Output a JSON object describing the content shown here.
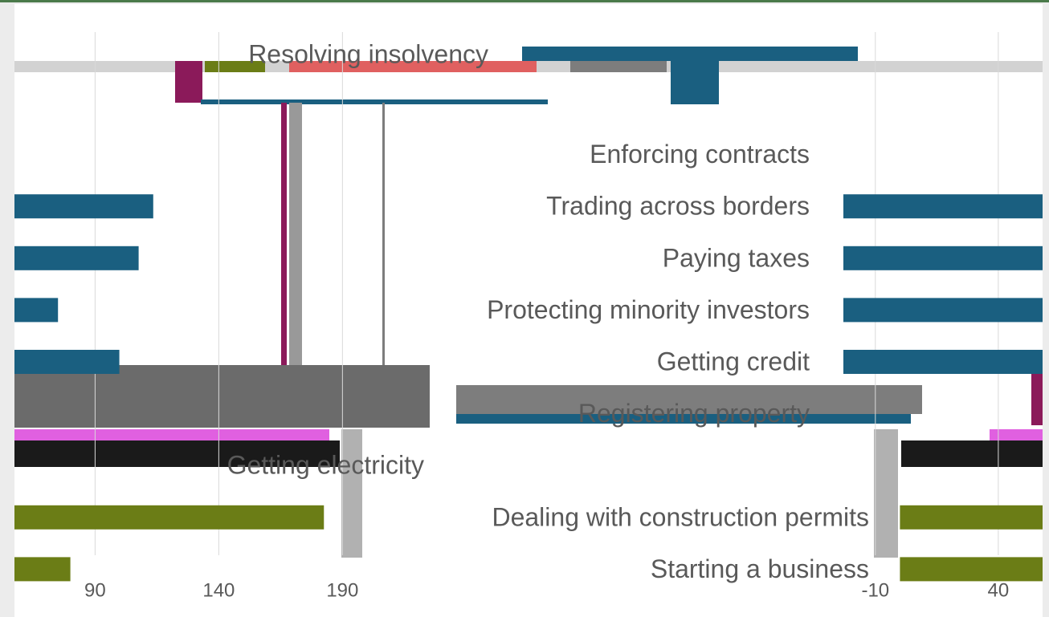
{
  "chart_data": [
    {
      "type": "barh",
      "categories": [
        "Resolving insolvency",
        "Enforcing contracts",
        "Trading across borders",
        "Paying taxes",
        "Protecting minority investors",
        "Getting credit",
        "Registering property",
        "Getting electricity",
        "Dealing with construction permits",
        "Starting a business"
      ],
      "values": [
        null,
        null,
        113.5,
        107.6,
        75,
        99.8,
        null,
        null,
        182.5,
        80
      ],
      "colors": [
        "#1a5f80",
        "#1a5f80",
        "#1a5f80",
        "#1a5f80",
        "#1a5f80",
        "#1a5f80",
        "#1a5f80",
        "#1a5f80",
        "#6b7d16",
        "#6b7d16"
      ],
      "xlim": [
        57.4,
        198
      ],
      "xticks": [
        90,
        140,
        190
      ],
      "grid": true
    },
    {
      "type": "barh",
      "values": [
        null,
        null,
        58,
        58,
        58,
        58,
        null,
        null,
        58,
        58
      ],
      "colors": [
        "#1a5f80",
        "#1a5f80",
        "#1a5f80",
        "#1a5f80",
        "#1a5f80",
        "#1a5f80",
        "#1a5f80",
        "#1a5f80",
        "#6b7d16",
        "#6b7d16"
      ],
      "xlim": [
        -23,
        58
      ],
      "xticks": [
        -10,
        40
      ],
      "grid": true
    }
  ]
}
